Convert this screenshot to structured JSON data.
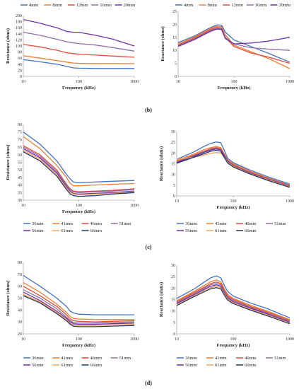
{
  "panel_labels": {
    "b": "(b)",
    "c": "(c)",
    "d": "(d)"
  },
  "colors": [
    "#4472C4",
    "#ED7D31",
    "#E04B3A",
    "#8E6FA8",
    "#7030A0",
    "#F4A460",
    "#1F3864"
  ],
  "chart_data": [
    {
      "id": "b-left",
      "type": "line",
      "xlabel": "Frequency (kHz)",
      "ylabel": "Resistance (ohms)",
      "xscale": "log",
      "xlim": [
        10,
        1000
      ],
      "ylim": [
        0,
        200
      ],
      "yticks_step": 20,
      "xticks": [
        "10",
        "100",
        "1000"
      ],
      "grid": false,
      "legend": "top",
      "x": [
        10,
        20,
        40,
        60,
        80,
        100,
        200,
        400,
        1000
      ],
      "series": [
        {
          "name": "4mm",
          "values": [
            55,
            48,
            40,
            33,
            28,
            27,
            26,
            26,
            26
          ]
        },
        {
          "name": "8mm",
          "values": [
            68,
            60,
            52,
            47,
            44,
            43,
            42,
            42,
            42
          ]
        },
        {
          "name": "12mm",
          "values": [
            105,
            97,
            86,
            78,
            75,
            73,
            70,
            67,
            63
          ]
        },
        {
          "name": "16mm",
          "values": [
            145,
            135,
            122,
            114,
            110,
            108,
            103,
            95,
            83
          ]
        },
        {
          "name": "20mm",
          "values": [
            187,
            175,
            160,
            148,
            145,
            145,
            135,
            123,
            100
          ]
        }
      ]
    },
    {
      "id": "b-right",
      "type": "line",
      "xlabel": "Frequency (kHz)",
      "ylabel": "Reactance (ohms)",
      "xscale": "log",
      "xlim": [
        10,
        1000
      ],
      "ylim": [
        0,
        25
      ],
      "yticks_step": 5,
      "xticks": [
        "10",
        "100",
        "1000"
      ],
      "grid": false,
      "legend": "top",
      "x": [
        10,
        20,
        30,
        40,
        50,
        60,
        70,
        100,
        200,
        400,
        1000
      ],
      "series": [
        {
          "name": "4mm",
          "values": [
            13.0,
            15.6,
            17.6,
            19.0,
            19.8,
            19.7,
            17.0,
            14.0,
            11.5,
            9.0,
            5.5
          ]
        },
        {
          "name": "8mm",
          "values": [
            12.5,
            15.2,
            17.2,
            18.6,
            19.3,
            19.1,
            16.0,
            12.0,
            9.5,
            7.0,
            3.0
          ]
        },
        {
          "name": "12mm",
          "values": [
            12.0,
            14.8,
            16.8,
            18.2,
            18.8,
            18.6,
            15.0,
            11.5,
            9.0,
            7.5,
            5.0
          ]
        },
        {
          "name": "16mm",
          "values": [
            11.7,
            14.5,
            16.5,
            17.8,
            18.5,
            18.3,
            15.0,
            12.5,
            11.0,
            10.5,
            10.0
          ]
        },
        {
          "name": "20mm",
          "values": [
            11.5,
            14.2,
            16.2,
            17.5,
            18.2,
            18.0,
            14.5,
            12.5,
            12.8,
            13.5,
            15.0
          ]
        }
      ]
    },
    {
      "id": "c-left",
      "type": "line",
      "xlabel": "Frequency (kHz)",
      "ylabel": "Resistance (ohms)",
      "xscale": "log",
      "xlim": [
        10,
        1000
      ],
      "ylim": [
        30,
        80
      ],
      "yticks_step": 5,
      "xticks": [
        "10",
        "100",
        "1000"
      ],
      "grid": false,
      "legend": "bottom",
      "x": [
        10,
        20,
        40,
        60,
        70,
        80,
        100,
        200,
        400,
        1000
      ],
      "series": [
        {
          "name": "36mm",
          "values": [
            75,
            67,
            56,
            47,
            44,
            42,
            41.5,
            42,
            42.5,
            43
          ]
        },
        {
          "name": "41mm",
          "values": [
            72,
            64,
            53,
            45,
            41,
            39.5,
            39.5,
            40,
            40.5,
            41
          ]
        },
        {
          "name": "46mm",
          "values": [
            66,
            60,
            50,
            40.5,
            37.5,
            36,
            35.5,
            36,
            36.5,
            37.5
          ]
        },
        {
          "name": "51mm",
          "values": [
            65,
            59,
            49,
            40,
            37,
            35.5,
            35,
            35.5,
            36,
            37
          ]
        },
        {
          "name": "56mm",
          "values": [
            64,
            58,
            48,
            39,
            36,
            34.5,
            34,
            34.5,
            35,
            36
          ]
        },
        {
          "name": "61mm",
          "values": [
            63,
            57,
            47,
            38,
            35,
            34,
            33.5,
            34,
            34.5,
            35.5
          ]
        },
        {
          "name": "66mm",
          "values": [
            62,
            56,
            46,
            37,
            34,
            33,
            32.5,
            33,
            34,
            35
          ]
        }
      ]
    },
    {
      "id": "c-right",
      "type": "line",
      "xlabel": "Frequency (kHz)",
      "ylabel": "Reactance (ohms)",
      "xscale": "log",
      "xlim": [
        10,
        1000
      ],
      "ylim": [
        0,
        30
      ],
      "yticks_step": 5,
      "xticks": [
        "10",
        "100",
        "1000"
      ],
      "grid": false,
      "legend": "bottom",
      "x": [
        10,
        20,
        30,
        40,
        50,
        60,
        70,
        80,
        100,
        200,
        400,
        1000
      ],
      "series": [
        {
          "name": "36mm",
          "values": [
            17.0,
            20.5,
            23.0,
            24.5,
            25.2,
            24.8,
            21.0,
            17.5,
            15.5,
            12.0,
            9.0,
            5.5
          ]
        },
        {
          "name": "41mm",
          "values": [
            16.5,
            19.5,
            21.5,
            22.5,
            23.0,
            22.5,
            19.5,
            16.8,
            15.0,
            11.5,
            8.5,
            5.0
          ]
        },
        {
          "name": "46mm",
          "values": [
            16.0,
            19.0,
            20.8,
            22.0,
            22.5,
            22.0,
            19.0,
            16.5,
            14.5,
            11.0,
            8.2,
            4.8
          ]
        },
        {
          "name": "51mm",
          "values": [
            15.8,
            18.7,
            20.5,
            21.7,
            22.2,
            21.7,
            18.7,
            16.2,
            14.2,
            10.8,
            8.0,
            4.6
          ]
        },
        {
          "name": "56mm",
          "values": [
            15.6,
            18.4,
            20.2,
            21.4,
            21.9,
            21.4,
            18.4,
            15.9,
            14.0,
            10.6,
            7.8,
            4.4
          ]
        },
        {
          "name": "61mm",
          "values": [
            17.0,
            18.0,
            19.0,
            19.8,
            20.2,
            20.0,
            18.0,
            15.6,
            13.8,
            10.4,
            7.6,
            4.2
          ]
        },
        {
          "name": "66mm",
          "values": [
            15.2,
            18.0,
            19.6,
            20.8,
            21.3,
            20.8,
            17.8,
            15.3,
            13.5,
            10.2,
            7.3,
            4.0
          ]
        }
      ]
    },
    {
      "id": "d-left",
      "type": "line",
      "xlabel": "Frequency (kHz)",
      "ylabel": "Resistance (ohms)",
      "xscale": "log",
      "xlim": [
        10,
        1000
      ],
      "ylim": [
        20,
        80
      ],
      "yticks_step": 10,
      "xticks": [
        "10",
        "100",
        "1000"
      ],
      "grid": false,
      "legend": "bottom",
      "x": [
        10,
        20,
        40,
        60,
        70,
        80,
        100,
        200,
        400,
        1000
      ],
      "series": [
        {
          "name": "36mm",
          "values": [
            69,
            60,
            50,
            43,
            39,
            37.5,
            36.5,
            36,
            36,
            36
          ]
        },
        {
          "name": "41mm",
          "values": [
            63,
            55,
            45,
            38,
            34.5,
            33,
            32.5,
            32,
            32,
            32
          ]
        },
        {
          "name": "46mm",
          "values": [
            60,
            52,
            43,
            36,
            32.5,
            31,
            30.5,
            30,
            30.5,
            31
          ]
        },
        {
          "name": "51mm",
          "values": [
            57,
            50,
            41,
            34,
            31,
            29.5,
            29,
            29,
            29.5,
            30
          ]
        },
        {
          "name": "56mm",
          "values": [
            55,
            48,
            39,
            33,
            30,
            28.5,
            28,
            28,
            28.5,
            29
          ]
        },
        {
          "name": "61mm",
          "values": [
            53,
            47,
            38,
            32,
            29,
            27.5,
            27,
            27,
            27.5,
            28
          ]
        },
        {
          "name": "66mm",
          "values": [
            52,
            46,
            37,
            31,
            28,
            26.5,
            26,
            26,
            26.5,
            27
          ]
        }
      ]
    },
    {
      "id": "d-right",
      "type": "line",
      "xlabel": "Frequency (kHz)",
      "ylabel": "Reactance (ohms)",
      "xscale": "log",
      "xlim": [
        10,
        1000
      ],
      "ylim": [
        0,
        30
      ],
      "yticks_step": 5,
      "xticks": [
        "10",
        "100",
        "1000"
      ],
      "grid": false,
      "legend": "bottom",
      "x": [
        10,
        20,
        30,
        40,
        50,
        60,
        70,
        80,
        100,
        200,
        400,
        1000
      ],
      "series": [
        {
          "name": "36mm",
          "values": [
            15.5,
            19.5,
            22.5,
            24.5,
            25.3,
            24.5,
            21.0,
            18.5,
            16.5,
            13.5,
            11.0,
            7.0
          ]
        },
        {
          "name": "41mm",
          "values": [
            14.5,
            18.5,
            21.0,
            22.8,
            23.5,
            22.8,
            19.5,
            17.2,
            15.5,
            12.5,
            10.0,
            6.2
          ]
        },
        {
          "name": "46mm",
          "values": [
            14.0,
            18.0,
            20.3,
            22.0,
            22.6,
            22.0,
            18.8,
            16.6,
            15.0,
            12.0,
            9.5,
            5.8
          ]
        },
        {
          "name": "51mm",
          "values": [
            13.6,
            17.5,
            19.8,
            21.4,
            22.0,
            21.4,
            18.3,
            16.1,
            14.5,
            11.6,
            9.1,
            5.4
          ]
        },
        {
          "name": "56mm",
          "values": [
            13.2,
            17.0,
            19.3,
            20.8,
            21.4,
            20.8,
            17.8,
            15.6,
            14.0,
            11.2,
            8.7,
            5.0
          ]
        },
        {
          "name": "61mm",
          "values": [
            12.8,
            16.6,
            18.8,
            20.2,
            20.8,
            20.2,
            17.3,
            15.2,
            13.6,
            10.8,
            8.3,
            4.7
          ]
        },
        {
          "name": "66mm",
          "values": [
            12.4,
            16.2,
            18.3,
            19.7,
            20.2,
            19.7,
            16.8,
            14.7,
            13.2,
            10.4,
            7.9,
            4.4
          ]
        }
      ]
    }
  ]
}
